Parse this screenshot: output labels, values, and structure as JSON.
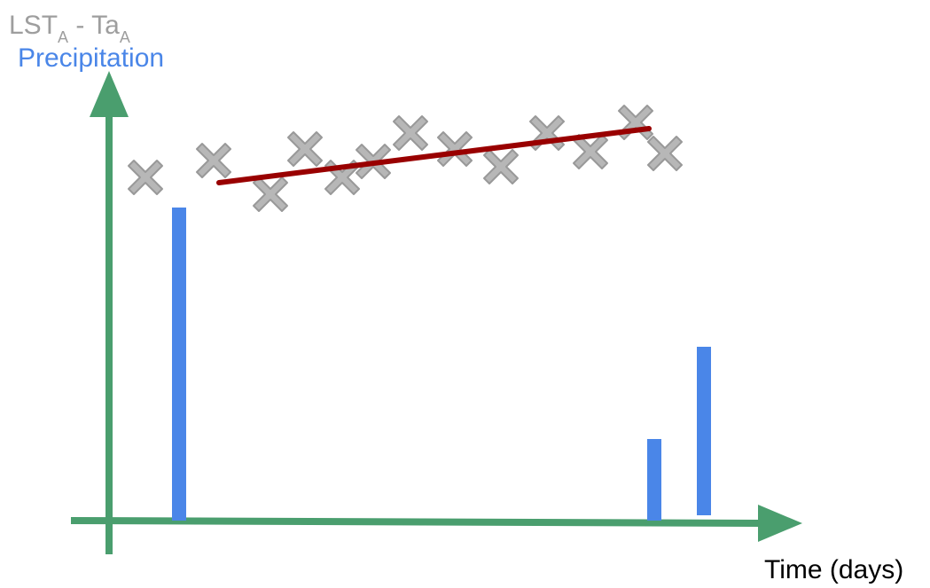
{
  "labels": {
    "lst_base": "LST",
    "lst_sub": "A",
    "separator": " - ",
    "ta_base": "Ta",
    "ta_sub": "A",
    "precipitation": "Precipitation",
    "x_axis": "Time (days)"
  },
  "colors": {
    "axis": "#4a9e6e",
    "precipitation": "#4a86e8",
    "cross_fill": "#b7b7b7",
    "cross_stroke": "#999999",
    "trend": "#990000",
    "label_gray": "#9e9e9e"
  },
  "icons": {
    "observation_marker": "cross-marker-icon"
  },
  "chart_data": {
    "type": "diagram",
    "precipitation_bars": [
      {
        "name": "early-event",
        "relative_height": 1.0
      },
      {
        "name": "late-event-small",
        "relative_height": 0.26
      },
      {
        "name": "late-event-medium",
        "relative_height": 0.52
      }
    ],
    "temperature_difference_trend": "increasing"
  }
}
